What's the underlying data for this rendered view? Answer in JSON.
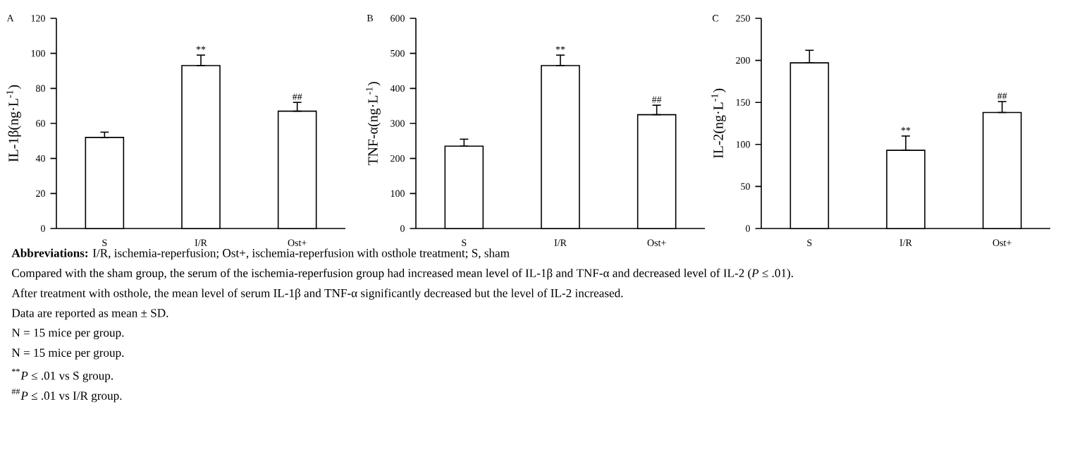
{
  "chart_data": [
    {
      "type": "bar",
      "title": "A",
      "ylabel": "IL-1β(ng·L$^{-1}$)",
      "categories": [
        "S",
        "I/R",
        "Ost+"
      ],
      "values": [
        52,
        93,
        67
      ],
      "color": "#ffffff",
      "errors": [
        [
          52,
          55
        ],
        [
          93,
          99
        ],
        [
          67,
          72
        ]
      ],
      "ylim": [
        0,
        120
      ],
      "yticks": [
        0,
        20,
        40,
        60,
        80,
        100,
        120
      ],
      "grid": false,
      "annotations": [
        {
          "text": "**",
          "x": "I/R",
          "y": 99
        },
        {
          "text": "##",
          "x": "Ost+",
          "y": 72
        }
      ]
    },
    {
      "type": "bar",
      "title": "B",
      "ylabel": "TNF-α(ng·L$^{-1}$)",
      "categories": [
        "S",
        "I/R",
        "Ost+"
      ],
      "values": [
        235,
        465,
        325
      ],
      "color": "#ffffff",
      "errors": [
        [
          235,
          255
        ],
        [
          465,
          495
        ],
        [
          325,
          352
        ]
      ],
      "ylim": [
        0,
        600
      ],
      "yticks": [
        0,
        100,
        200,
        300,
        400,
        500,
        600
      ],
      "grid": false,
      "annotations": [
        {
          "text": "**",
          "x": "I/R",
          "y": 495
        },
        {
          "text": "##",
          "x": "Ost+",
          "y": 352
        }
      ]
    },
    {
      "type": "bar",
      "title": "C",
      "ylabel": "IL-2(ng·L$^{-1}$)",
      "categories": [
        "S",
        "I/R",
        "Ost+"
      ],
      "values": [
        197,
        93,
        138
      ],
      "color": "#ffffff",
      "errors": [
        [
          197,
          212
        ],
        [
          93,
          110
        ],
        [
          138,
          151
        ]
      ],
      "ylim": [
        0,
        250
      ],
      "yticks": [
        0,
        50,
        100,
        150,
        200,
        250
      ],
      "grid": false,
      "annotations": [
        {
          "text": "**",
          "x": "I/R",
          "y": 110
        },
        {
          "text": "##",
          "x": "Ost+",
          "y": 151
        }
      ]
    },
    {
      "type": "other",
      "annotations": [
        "**Abbreviations:** I/R, ischemia-reperfusion; Ost+, ischemia-reperfusion with osthole treatment; S, sham",
        "Compared with the sham group, the serum of the ischemia-reperfusion group had increased mean level of IL-1β and TNF-α and decreased level of IL-2 (*P* ≤ .01).",
        "After treatment with osthole, the mean level of serum IL-1β and TNF-α significantly decreased but the level of IL-2 increased.",
        "Data are reported as mean ± SD.",
        "N = 15 mice per group.",
        "N = 15 mice per group.",
        "$^{**}$*P* ≤ .01 vs S group.",
        "$^{##}$*P* ≤ .01 vs I/R group."
      ]
    }
  ]
}
